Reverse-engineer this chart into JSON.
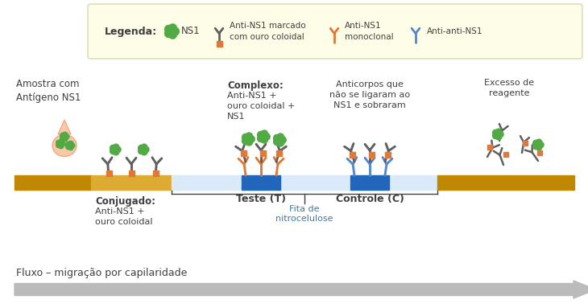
{
  "bg_color": "#ffffff",
  "colors": {
    "green": "#52aa44",
    "orange": "#e07838",
    "blue": "#5588cc",
    "dark_gray": "#606060",
    "light_blue_strip": "#daeaf8",
    "blue_block": "#2266bb",
    "dark_gold": "#c08800",
    "mid_gold": "#ddaa33",
    "gray_arrow": "#bbbbbb",
    "salmon_drop": "#f8c8a8",
    "text_dark": "#404040",
    "text_blue": "#4477aa"
  },
  "legend_text": {
    "legenda": "Legenda:",
    "ns1": "NS1",
    "anti_ns1_marked": "Anti-NS1 marcado\ncom ouro coloidal",
    "anti_ns1_mono": "Anti-NS1\nmonoclonal",
    "anti_anti": "Anti-anti-NS1"
  },
  "main_labels": {
    "amostra": "Amostra com\nAntígeno NS1",
    "conjugado_title": "Conjugado:",
    "conjugado_body": "Anti-NS1 +\nouro coloidal",
    "complexo_title": "Complexo:",
    "complexo_body": "Anti-NS1 +\nouro coloidal +\nNS1",
    "teste": "Teste (T)",
    "controle": "Controle (C)",
    "anticorpos": "Anticorpos que\nnão se ligaram ao\nNS1 e sobraram",
    "excesso": "Excesso de\nreagente",
    "fita_label": "Fita de\nnitrocelulose",
    "fluxo": "Fluxo – migração por capilaridade"
  }
}
